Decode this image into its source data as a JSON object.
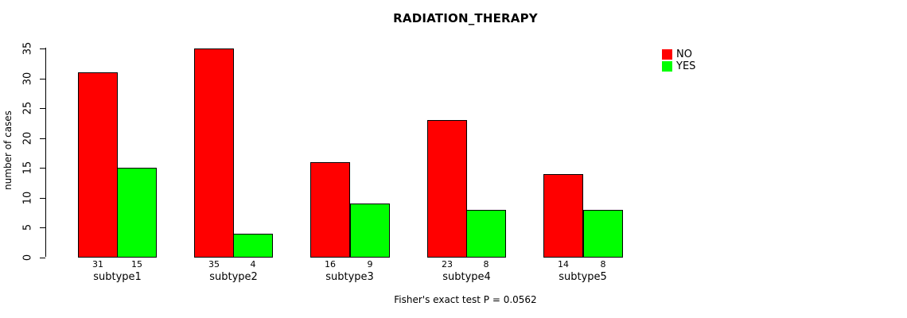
{
  "title": "RADIATION_THERAPY",
  "y_axis": {
    "label": "number of cases",
    "tick_labels": [
      "0",
      "5",
      "10",
      "15",
      "20",
      "25",
      "30",
      "35"
    ]
  },
  "legend": {
    "items": [
      {
        "label": "NO",
        "color": "#FF0000"
      },
      {
        "label": "YES",
        "color": "#00FF00"
      }
    ]
  },
  "footer": "Fisher's exact test P = 0.0562",
  "chart_data": {
    "type": "bar",
    "title": "RADIATION_THERAPY",
    "categories": [
      "subtype1",
      "subtype2",
      "subtype3",
      "subtype4",
      "subtype5"
    ],
    "series": [
      {
        "name": "NO",
        "color": "#FF0000",
        "values": [
          31,
          35,
          16,
          23,
          14
        ]
      },
      {
        "name": "YES",
        "color": "#00FF00",
        "values": [
          15,
          4,
          9,
          8,
          8
        ]
      }
    ],
    "xlabel": "",
    "ylabel": "number of cases",
    "ylim": [
      0,
      35
    ],
    "yticks": [
      0,
      5,
      10,
      15,
      20,
      25,
      30,
      35
    ],
    "bar_value_labels": true,
    "annotation": "Fisher's exact test P = 0.0562",
    "legend_position": "top-right",
    "grid": false,
    "background": "#FFFFFF",
    "bar_border_color": "#000000"
  }
}
